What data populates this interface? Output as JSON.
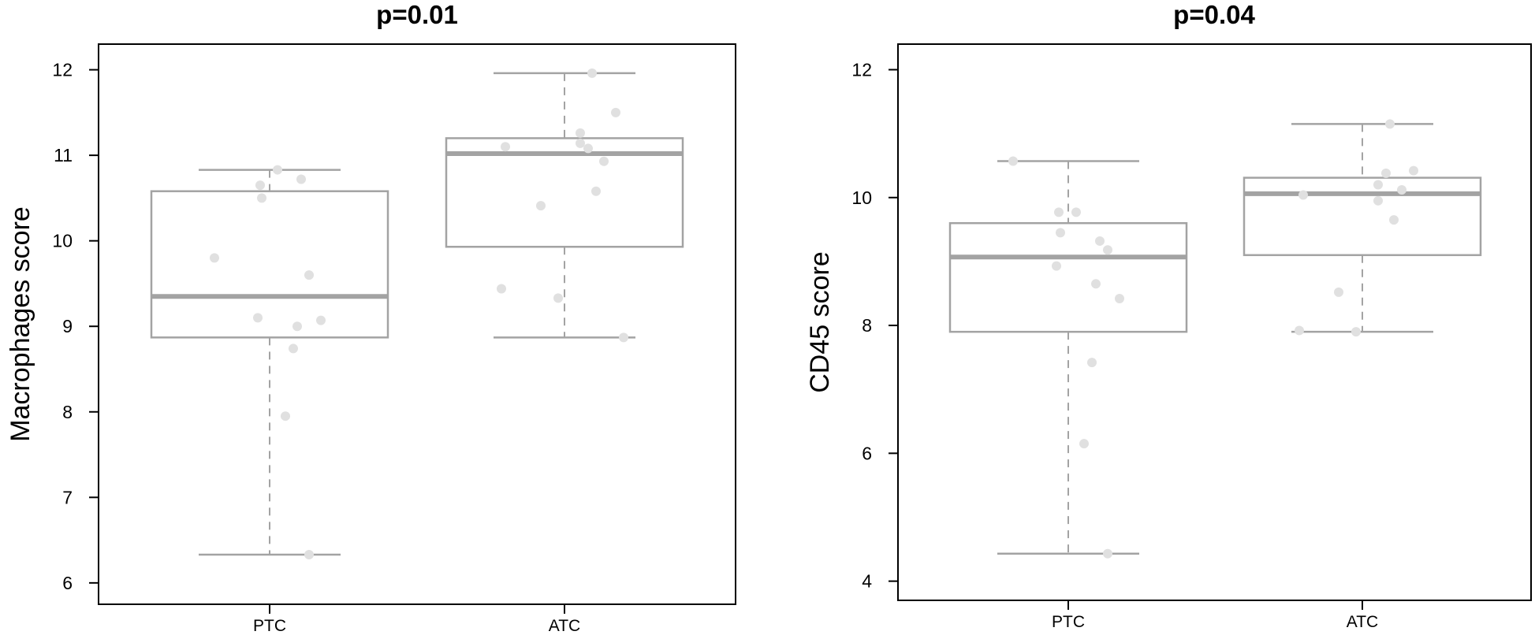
{
  "chart_data": [
    {
      "type": "box",
      "title": "p=0.01",
      "ylabel": "Macrophages score",
      "xlabel": "",
      "ylim": [
        5.75,
        12.3
      ],
      "yticks": [
        6,
        7,
        8,
        9,
        10,
        11,
        12
      ],
      "categories": [
        "PTC",
        "ATC"
      ],
      "grid": false,
      "boxes": [
        {
          "name": "PTC",
          "min": 6.33,
          "q1": 8.87,
          "median": 9.35,
          "q3": 10.58,
          "max": 10.83
        },
        {
          "name": "ATC",
          "min": 8.87,
          "q1": 9.93,
          "median": 11.02,
          "q3": 11.2,
          "max": 11.96
        }
      ],
      "points": [
        [
          9.8,
          10.83,
          10.65,
          10.5,
          10.72,
          9.6,
          9.1,
          9.0,
          9.07,
          8.74,
          7.95,
          6.33
        ],
        [
          11.96,
          11.5,
          11.08,
          11.14,
          10.93,
          11.1,
          11.26,
          10.58,
          10.41,
          9.44,
          9.33,
          8.87
        ]
      ]
    },
    {
      "type": "box",
      "title": "p=0.04",
      "ylabel": "CD45 score",
      "xlabel": "",
      "ylim": [
        3.7,
        12.4
      ],
      "yticks": [
        4,
        6,
        8,
        10,
        12
      ],
      "categories": [
        "PTC",
        "ATC"
      ],
      "grid": false,
      "boxes": [
        {
          "name": "PTC",
          "min": 4.43,
          "q1": 7.9,
          "median": 9.07,
          "q3": 9.6,
          "max": 10.57
        },
        {
          "name": "ATC",
          "min": 7.9,
          "q1": 9.1,
          "median": 10.06,
          "q3": 10.31,
          "max": 11.15
        }
      ],
      "points": [
        [
          10.57,
          9.77,
          9.77,
          9.45,
          9.32,
          9.18,
          8.93,
          8.65,
          8.42,
          7.42,
          6.15,
          4.43
        ],
        [
          11.15,
          10.42,
          10.38,
          10.2,
          10.12,
          10.04,
          9.95,
          9.65,
          8.52,
          7.92,
          7.9
        ]
      ]
    }
  ]
}
